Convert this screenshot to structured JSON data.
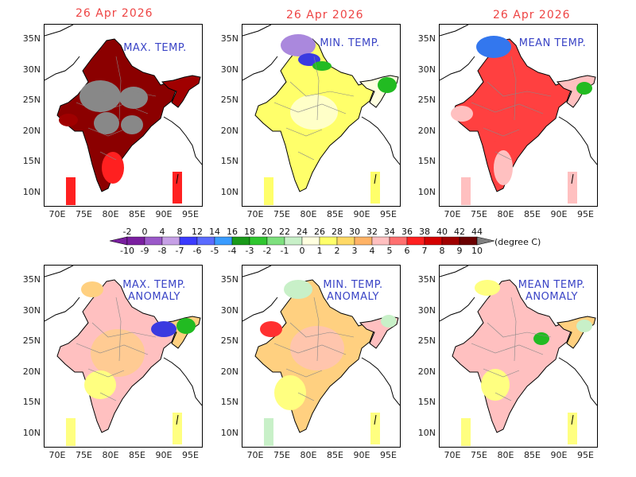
{
  "dates": [
    "26 Apr 2026",
    "26 Apr 2026",
    "26 Apr 2026"
  ],
  "panels": [
    {
      "title": "MAX. TEMP.",
      "subtitle": ""
    },
    {
      "title": "MIN. TEMP.",
      "subtitle": ""
    },
    {
      "title": "MEAN TEMP.",
      "subtitle": ""
    },
    {
      "title": "MAX. TEMP.",
      "subtitle": "ANOMALY"
    },
    {
      "title": "MIN. TEMP.",
      "subtitle": "ANOMALY"
    },
    {
      "title": "MEAN TEMP.",
      "subtitle": "ANOMALY"
    }
  ],
  "y_ticks": [
    "35N",
    "30N",
    "25N",
    "20N",
    "15N",
    "10N"
  ],
  "x_ticks": [
    "70E",
    "75E",
    "80E",
    "85E",
    "90E",
    "95E"
  ],
  "colorbar": {
    "top_labels": [
      "-2",
      "0",
      "4",
      "8",
      "12",
      "14",
      "16",
      "18",
      "20",
      "22",
      "24",
      "26",
      "28",
      "30",
      "32",
      "34",
      "36",
      "38",
      "40",
      "42",
      "44"
    ],
    "bottom_labels": [
      "-10",
      "-9",
      "-8",
      "-7",
      "-6",
      "-5",
      "-4",
      "-3",
      "-2",
      "-1",
      "0",
      "1",
      "2",
      "3",
      "4",
      "5",
      "6",
      "7",
      "8",
      "9",
      "10"
    ],
    "unit": "(degree C)",
    "colors": [
      "#7a1fa0",
      "#9b59c9",
      "#c6a0e6",
      "#3b3bff",
      "#5a6bff",
      "#3a9cff",
      "#1a9a1a",
      "#2fc62f",
      "#7ee07e",
      "#c8f0c8",
      "#ffffe0",
      "#ffff6a",
      "#ffd966",
      "#ffb366",
      "#ffc0c0",
      "#ff7070",
      "#ff2020",
      "#d40000",
      "#a00000",
      "#6a0000"
    ]
  },
  "fills": {
    "max": [
      "#8b0000",
      "#a00000",
      "#ff2020",
      "#888888"
    ],
    "min": [
      "#ffff6a",
      "#ffffe0",
      "#c8f0c8",
      "#3a3ae0",
      "#aa88dd",
      "#22bb22"
    ],
    "mean": [
      "#ff4040",
      "#ffc0c0",
      "#3377ee",
      "#22bb22"
    ],
    "anom_max": [
      "#ffc0c0",
      "#ffd080",
      "#ffff80",
      "#3a3ae0",
      "#22bb22"
    ],
    "anom_min": [
      "#ffd080",
      "#ffc0c0",
      "#ffff80",
      "#c8f0c8",
      "#ff3030"
    ],
    "anom_mean": [
      "#ffc0c0",
      "#ffd080",
      "#ffff80",
      "#c8f0c8",
      "#22bb22"
    ]
  }
}
